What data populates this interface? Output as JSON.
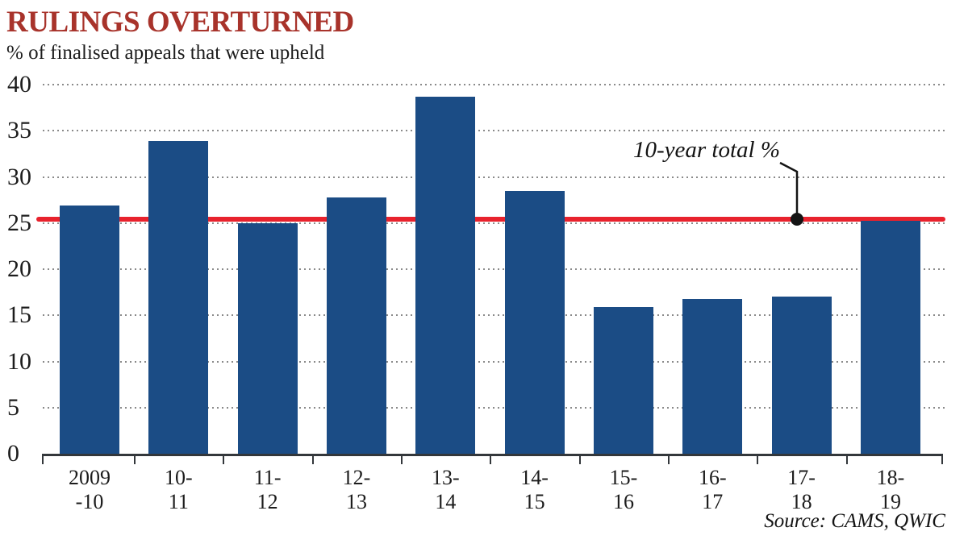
{
  "chart_data": {
    "type": "bar",
    "title": "RULINGS OVERTURNED",
    "subtitle": "% of finalised appeals that were upheld",
    "categories": [
      "2009\n-10",
      "10-\n11",
      "11-\n12",
      "12-\n13",
      "13-\n14",
      "14-\n15",
      "15-\n16",
      "16-\n17",
      "17-\n18",
      "18-\n19"
    ],
    "values": [
      26.9,
      33.9,
      25.0,
      27.8,
      38.7,
      28.5,
      15.9,
      16.8,
      17.0,
      25.2
    ],
    "xlabel": "",
    "ylabel": "",
    "ylim": [
      0,
      40
    ],
    "yticks": [
      0,
      5,
      10,
      15,
      20,
      25,
      30,
      35,
      40
    ],
    "grid": "horizontal-dotted",
    "legend": "none",
    "reference_line": {
      "value": 25.4,
      "label": "10-year total %"
    },
    "source": "Source: CAMS, QWIC",
    "colors": {
      "bar": "#1b4c85",
      "reference_line": "#e8222d",
      "title": "#a8332b",
      "axis": "#33373b",
      "grid_dots": "#8a8a8a",
      "text": "#1c1c1c",
      "background": "#ffffff"
    }
  }
}
